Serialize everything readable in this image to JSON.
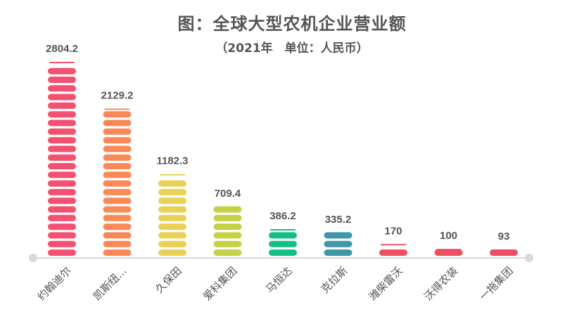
{
  "chart_data": {
    "type": "bar",
    "title": "图：全球大型农机企业营业额",
    "subtitle": "（2021年　单位：人民币）",
    "categories": [
      "约翰迪尔",
      "凯斯纽...",
      "久保田",
      "爱科集团",
      "马恒达",
      "克拉斯",
      "潍柴雷沃",
      "沃得农装",
      "一拖集团"
    ],
    "values": [
      2804.2,
      2129.2,
      1182.3,
      709.4,
      386.2,
      335.2,
      170,
      100,
      93
    ],
    "value_labels": [
      "2804.2",
      "2129.2",
      "1182.3",
      "709.4",
      "386.2",
      "335.2",
      "170",
      "100",
      "93"
    ],
    "colors": [
      "#f4506f",
      "#f98a58",
      "#ecd055",
      "#c5d246",
      "#13bf82",
      "#3f98a8",
      "#ef4f62",
      "#ef4f62",
      "#ef4f62"
    ],
    "xlabel": "",
    "ylabel": "",
    "ylim": [
      0,
      2804.2
    ],
    "grid": false,
    "legend": "none",
    "axis_color": "#d9d9d9"
  }
}
